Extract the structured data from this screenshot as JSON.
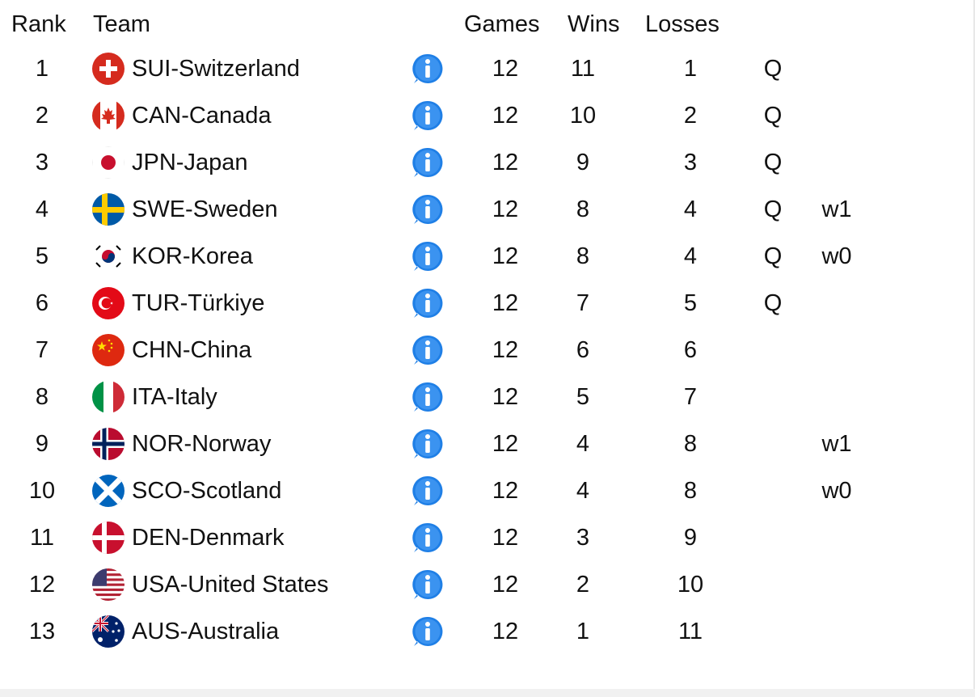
{
  "headers": {
    "rank": "Rank",
    "team": "Team",
    "games": "Games",
    "wins": "Wins",
    "losses": "Losses"
  },
  "rows": [
    {
      "rank": "1",
      "team": "SUI-Switzerland",
      "flag": "sui-flag-icon",
      "games": "12",
      "wins": "11",
      "losses": "1",
      "q": "Q",
      "w": ""
    },
    {
      "rank": "2",
      "team": "CAN-Canada",
      "flag": "can-flag-icon",
      "games": "12",
      "wins": "10",
      "losses": "2",
      "q": "Q",
      "w": ""
    },
    {
      "rank": "3",
      "team": "JPN-Japan",
      "flag": "jpn-flag-icon",
      "games": "12",
      "wins": "9",
      "losses": "3",
      "q": "Q",
      "w": ""
    },
    {
      "rank": "4",
      "team": "SWE-Sweden",
      "flag": "swe-flag-icon",
      "games": "12",
      "wins": "8",
      "losses": "4",
      "q": "Q",
      "w": "w1"
    },
    {
      "rank": "5",
      "team": "KOR-Korea",
      "flag": "kor-flag-icon",
      "games": "12",
      "wins": "8",
      "losses": "4",
      "q": "Q",
      "w": "w0"
    },
    {
      "rank": "6",
      "team": "TUR-Türkiye",
      "flag": "tur-flag-icon",
      "games": "12",
      "wins": "7",
      "losses": "5",
      "q": "Q",
      "w": ""
    },
    {
      "rank": "7",
      "team": "CHN-China",
      "flag": "chn-flag-icon",
      "games": "12",
      "wins": "6",
      "losses": "6",
      "q": "",
      "w": ""
    },
    {
      "rank": "8",
      "team": "ITA-Italy",
      "flag": "ita-flag-icon",
      "games": "12",
      "wins": "5",
      "losses": "7",
      "q": "",
      "w": ""
    },
    {
      "rank": "9",
      "team": "NOR-Norway",
      "flag": "nor-flag-icon",
      "games": "12",
      "wins": "4",
      "losses": "8",
      "q": "",
      "w": "w1"
    },
    {
      "rank": "10",
      "team": "SCO-Scotland",
      "flag": "sco-flag-icon",
      "games": "12",
      "wins": "4",
      "losses": "8",
      "q": "",
      "w": "w0"
    },
    {
      "rank": "11",
      "team": "DEN-Denmark",
      "flag": "den-flag-icon",
      "games": "12",
      "wins": "3",
      "losses": "9",
      "q": "",
      "w": ""
    },
    {
      "rank": "12",
      "team": "USA-United States",
      "flag": "usa-flag-icon",
      "games": "12",
      "wins": "2",
      "losses": "10",
      "q": "",
      "w": ""
    },
    {
      "rank": "13",
      "team": "AUS-Australia",
      "flag": "aus-flag-icon",
      "games": "12",
      "wins": "1",
      "losses": "11",
      "q": "",
      "w": ""
    }
  ],
  "icons": {
    "info": "info-icon"
  },
  "colors": {
    "info_blue": "#1f7fe6",
    "text": "#111111"
  }
}
